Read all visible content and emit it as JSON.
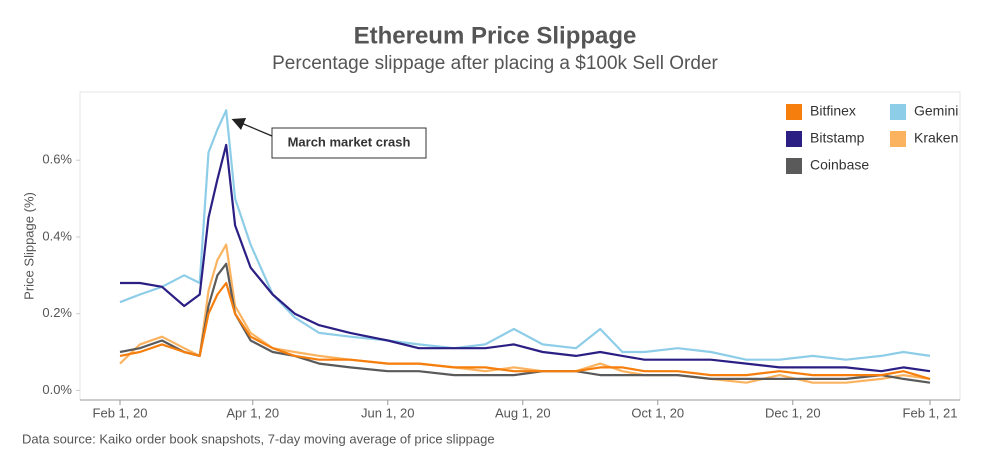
{
  "chart_data": {
    "type": "line",
    "title": "Ethereum Price Slippage",
    "subtitle": "Percentage slippage after placing a $100k Sell Order",
    "y_label": "Price Slippage (%)",
    "source": "Data source: Kaiko order book snapshots, 7-day moving average of price slippage",
    "annotation": "March market crash",
    "x": [
      "2020-02-01",
      "2020-02-10",
      "2020-02-20",
      "2020-03-01",
      "2020-03-08",
      "2020-03-12",
      "2020-03-16",
      "2020-03-20",
      "2020-03-24",
      "2020-03-31",
      "2020-04-10",
      "2020-04-20",
      "2020-05-01",
      "2020-05-15",
      "2020-06-01",
      "2020-06-15",
      "2020-07-01",
      "2020-07-15",
      "2020-07-28",
      "2020-08-10",
      "2020-08-25",
      "2020-09-05",
      "2020-09-15",
      "2020-09-25",
      "2020-10-10",
      "2020-10-25",
      "2020-11-10",
      "2020-11-25",
      "2020-12-10",
      "2020-12-25",
      "2021-01-10",
      "2021-01-20",
      "2021-02-01"
    ],
    "series": [
      {
        "name": "Bitfinex",
        "color": "#f57e0d",
        "values": [
          0.09,
          0.1,
          0.12,
          0.1,
          0.09,
          0.2,
          0.25,
          0.28,
          0.2,
          0.14,
          0.11,
          0.09,
          0.08,
          0.08,
          0.07,
          0.07,
          0.06,
          0.06,
          0.05,
          0.05,
          0.05,
          0.06,
          0.06,
          0.05,
          0.05,
          0.04,
          0.04,
          0.05,
          0.04,
          0.04,
          0.04,
          0.05,
          0.03
        ]
      },
      {
        "name": "Bitstamp",
        "color": "#2b1f84",
        "values": [
          0.28,
          0.28,
          0.27,
          0.22,
          0.25,
          0.45,
          0.55,
          0.64,
          0.43,
          0.32,
          0.25,
          0.2,
          0.17,
          0.15,
          0.13,
          0.11,
          0.11,
          0.11,
          0.12,
          0.1,
          0.09,
          0.1,
          0.09,
          0.08,
          0.08,
          0.08,
          0.07,
          0.06,
          0.06,
          0.06,
          0.05,
          0.06,
          0.05
        ]
      },
      {
        "name": "Coinbase",
        "color": "#5a5a5a",
        "values": [
          0.1,
          0.11,
          0.13,
          0.1,
          0.09,
          0.22,
          0.3,
          0.33,
          0.2,
          0.13,
          0.1,
          0.09,
          0.07,
          0.06,
          0.05,
          0.05,
          0.04,
          0.04,
          0.04,
          0.05,
          0.05,
          0.04,
          0.04,
          0.04,
          0.04,
          0.03,
          0.03,
          0.03,
          0.03,
          0.03,
          0.04,
          0.03,
          0.02
        ]
      },
      {
        "name": "Gemini",
        "color": "#8ecde8",
        "values": [
          0.23,
          0.25,
          0.27,
          0.3,
          0.28,
          0.62,
          0.68,
          0.73,
          0.5,
          0.38,
          0.25,
          0.19,
          0.15,
          0.14,
          0.13,
          0.12,
          0.11,
          0.12,
          0.16,
          0.12,
          0.11,
          0.16,
          0.1,
          0.1,
          0.11,
          0.1,
          0.08,
          0.08,
          0.09,
          0.08,
          0.09,
          0.1,
          0.09
        ]
      },
      {
        "name": "Kraken",
        "color": "#fbb360",
        "values": [
          0.07,
          0.12,
          0.14,
          0.11,
          0.09,
          0.26,
          0.34,
          0.38,
          0.22,
          0.15,
          0.11,
          0.1,
          0.09,
          0.08,
          0.07,
          0.07,
          0.06,
          0.05,
          0.06,
          0.05,
          0.05,
          0.07,
          0.05,
          0.04,
          0.04,
          0.03,
          0.02,
          0.04,
          0.02,
          0.02,
          0.03,
          0.04,
          0.03
        ]
      }
    ],
    "xlim": [
      "2020-02-01",
      "2021-02-01"
    ],
    "xticks": [
      {
        "value": "2020-02-01",
        "label": "Feb 1, 20"
      },
      {
        "value": "2020-04-01",
        "label": "Apr 1, 20"
      },
      {
        "value": "2020-06-01",
        "label": "Jun 1, 20"
      },
      {
        "value": "2020-08-01",
        "label": "Aug 1, 20"
      },
      {
        "value": "2020-10-01",
        "label": "Oct 1, 20"
      },
      {
        "value": "2020-12-01",
        "label": "Dec 1, 20"
      },
      {
        "value": "2021-02-01",
        "label": "Feb 1, 21"
      }
    ],
    "ylim": [
      -0.025,
      0.77
    ],
    "yticks": [
      {
        "value": 0,
        "label": "0.0%"
      },
      {
        "value": 0.2,
        "label": "0.2%"
      },
      {
        "value": 0.4,
        "label": "0.4%"
      },
      {
        "value": 0.6,
        "label": "0.6%"
      }
    ]
  }
}
